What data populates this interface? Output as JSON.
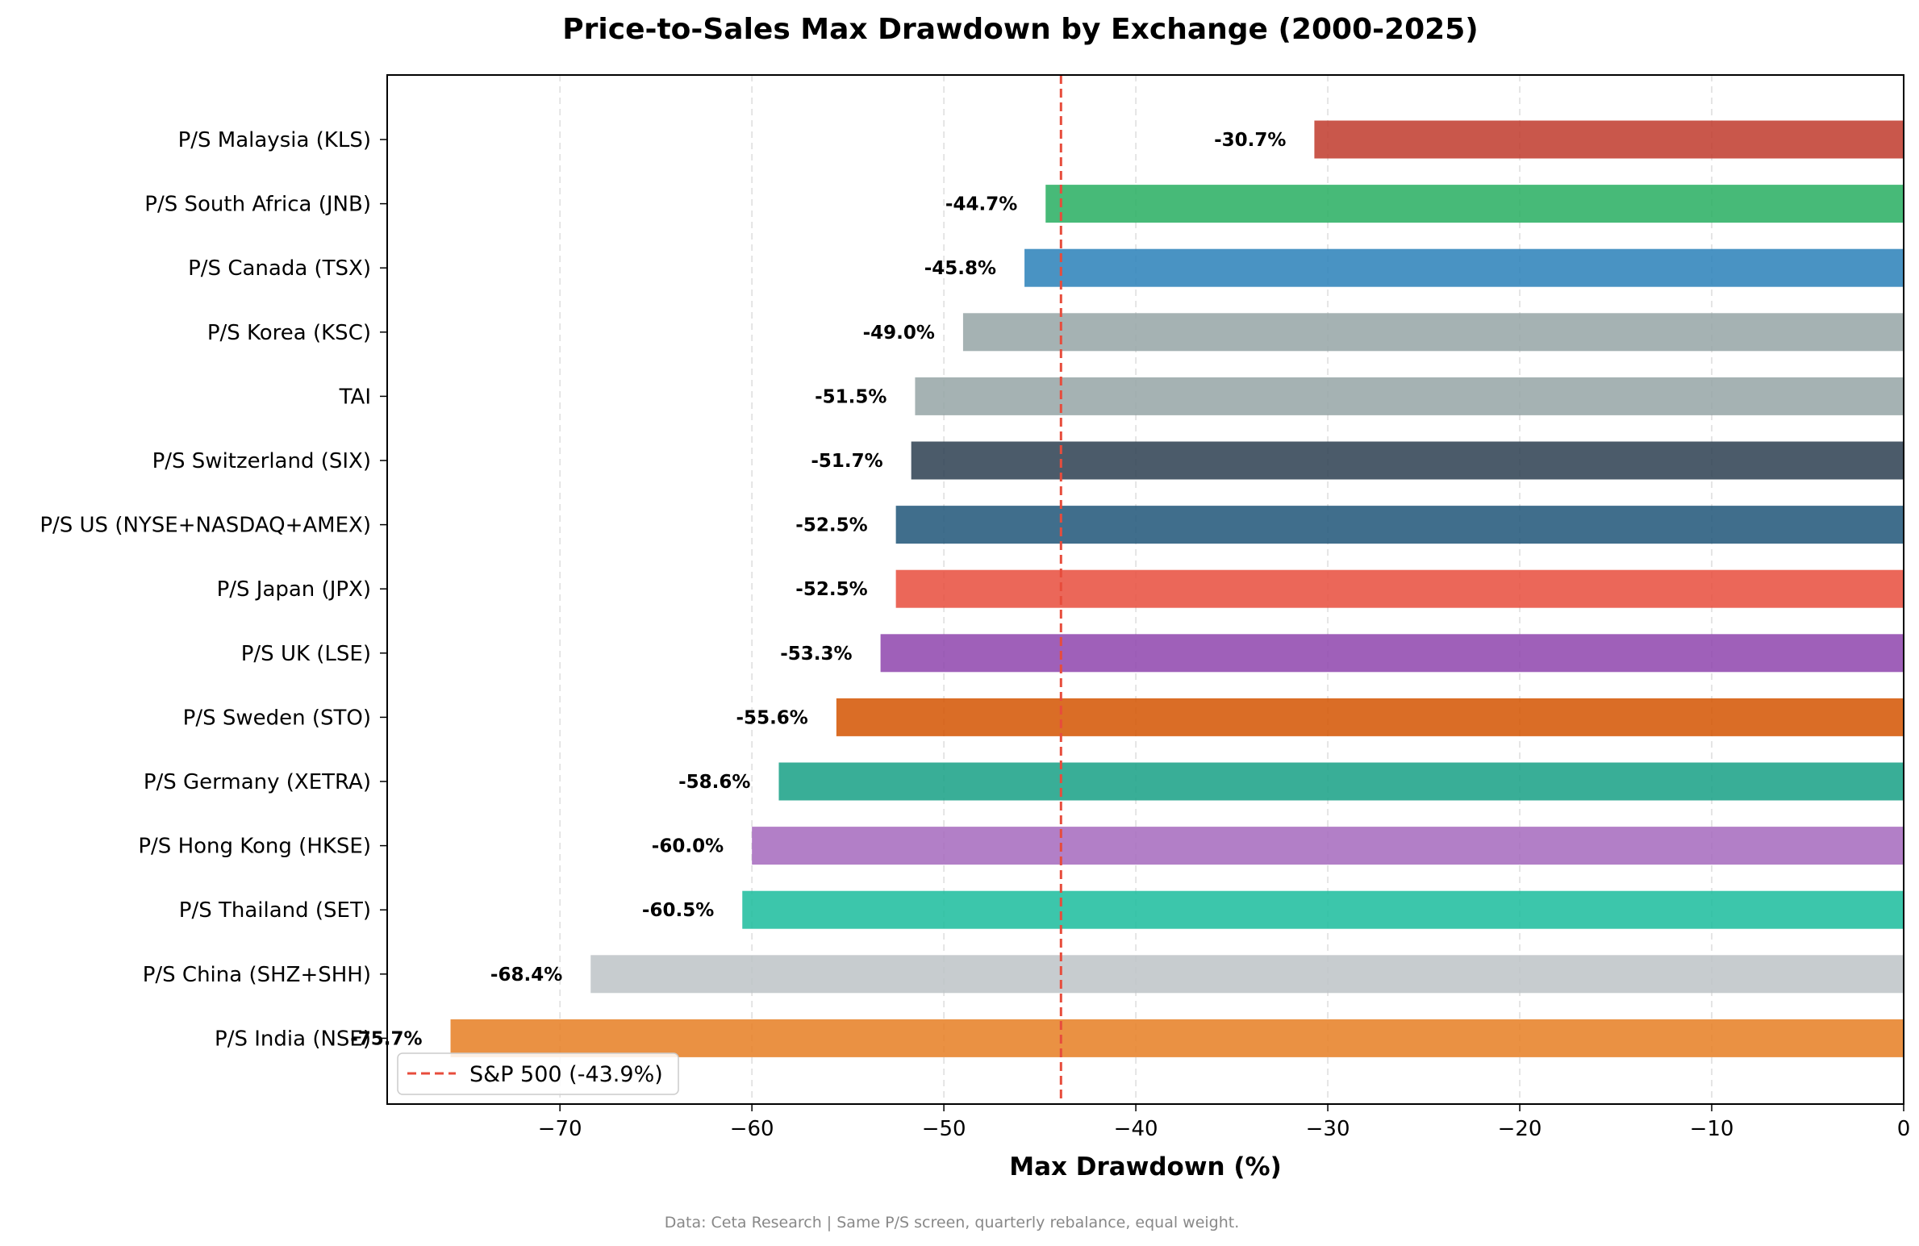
{
  "chart_data": {
    "type": "bar",
    "orientation": "horizontal",
    "title": "Price-to-Sales Max Drawdown by Exchange (2000-2025)",
    "xlabel": "Max Drawdown (%)",
    "ylabel": "",
    "xlim": [
      -79,
      0
    ],
    "xticks": [
      -70,
      -60,
      -50,
      -40,
      -30,
      -20,
      -10,
      0
    ],
    "xtick_labels": [
      "−70",
      "−60",
      "−50",
      "−40",
      "−30",
      "−20",
      "−10",
      "0"
    ],
    "grid": "x-dashed",
    "categories": [
      "P/S Malaysia (KLS)",
      "P/S South Africa (JNB)",
      "P/S Canada (TSX)",
      "P/S Korea (KSC)",
      "TAI",
      "P/S Switzerland (SIX)",
      "P/S US (NYSE+NASDAQ+AMEX)",
      "P/S Japan (JPX)",
      "P/S UK (LSE)",
      "P/S Sweden (STO)",
      "P/S Germany (XETRA)",
      "P/S Hong Kong (HKSE)",
      "P/S Thailand (SET)",
      "P/S China (SHZ+SHH)",
      "P/S India (NSE)"
    ],
    "values": [
      -30.7,
      -44.7,
      -45.8,
      -49.0,
      -51.5,
      -51.7,
      -52.5,
      -52.5,
      -53.3,
      -55.6,
      -58.6,
      -60.0,
      -60.5,
      -68.4,
      -75.7
    ],
    "value_labels": [
      "-30.7%",
      "-44.7%",
      "-45.8%",
      "-49.0%",
      "-51.5%",
      "-51.7%",
      "-52.5%",
      "-52.5%",
      "-53.3%",
      "-55.6%",
      "-58.6%",
      "-60.0%",
      "-60.5%",
      "-68.4%",
      "-75.7%"
    ],
    "colors": [
      "#c0392b",
      "#27ae60",
      "#2980b9",
      "#95a5a6",
      "#95a5a6",
      "#2c3e50",
      "#1f5578",
      "#e74c3c",
      "#8e44ad",
      "#d35400",
      "#16a085",
      "#a569bd",
      "#1abc9c",
      "#bdc3c7",
      "#e67e22"
    ],
    "reference_line": {
      "value": -43.9,
      "label": "S&P 500 (-43.9%)",
      "color": "#e74c3c",
      "style": "dashed"
    },
    "legend_position": "bottom-left",
    "footer": "Data: Ceta Research | Same P/S screen, quarterly rebalance, equal weight."
  }
}
